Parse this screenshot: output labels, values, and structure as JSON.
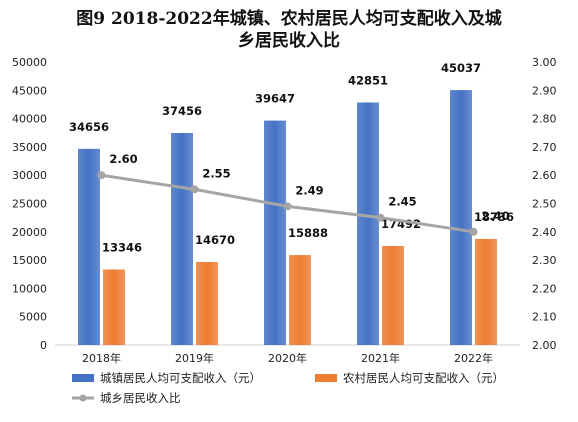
{
  "chart_data": {
    "type": "bar",
    "title_line1": "图9 2018-2022年城镇、农村居民人均可支配收入及城",
    "title_line2": "乡居民收入比",
    "categories": [
      "2018年",
      "2019年",
      "2020年",
      "2021年",
      "2022年"
    ],
    "series": [
      {
        "name": "城镇居民人均可支配收入（元）",
        "type": "bar",
        "axis": "left",
        "color": "#4472C4",
        "values": [
          34656,
          37456,
          39647,
          42851,
          45037
        ],
        "labels": [
          "34656",
          "37456",
          "39647",
          "42851",
          "45037"
        ]
      },
      {
        "name": "农村居民人均可支配收入（元）",
        "type": "bar",
        "axis": "left",
        "color": "#ED7D31",
        "values": [
          13346,
          14670,
          15888,
          17492,
          18736
        ],
        "labels": [
          "13346",
          "14670",
          "15888",
          "17492",
          "18736"
        ]
      },
      {
        "name": "城乡居民收入比",
        "type": "line",
        "axis": "right",
        "color": "#A5A5A5",
        "values": [
          2.6,
          2.55,
          2.49,
          2.45,
          2.4
        ],
        "labels": [
          "2.60",
          "2.55",
          "2.49",
          "2.45",
          "2.40"
        ]
      }
    ],
    "y_left": {
      "min": 0,
      "max": 50000,
      "step": 5000,
      "ticks": [
        "0",
        "5000",
        "10000",
        "15000",
        "20000",
        "25000",
        "30000",
        "35000",
        "40000",
        "45000",
        "50000"
      ]
    },
    "y_right": {
      "min": 2.0,
      "max": 3.0,
      "step": 0.1,
      "ticks": [
        "2.00",
        "2.10",
        "2.20",
        "2.30",
        "2.40",
        "2.50",
        "2.60",
        "2.70",
        "2.80",
        "2.90",
        "3.00"
      ]
    },
    "grid": false,
    "legend_position": "bottom-left"
  }
}
